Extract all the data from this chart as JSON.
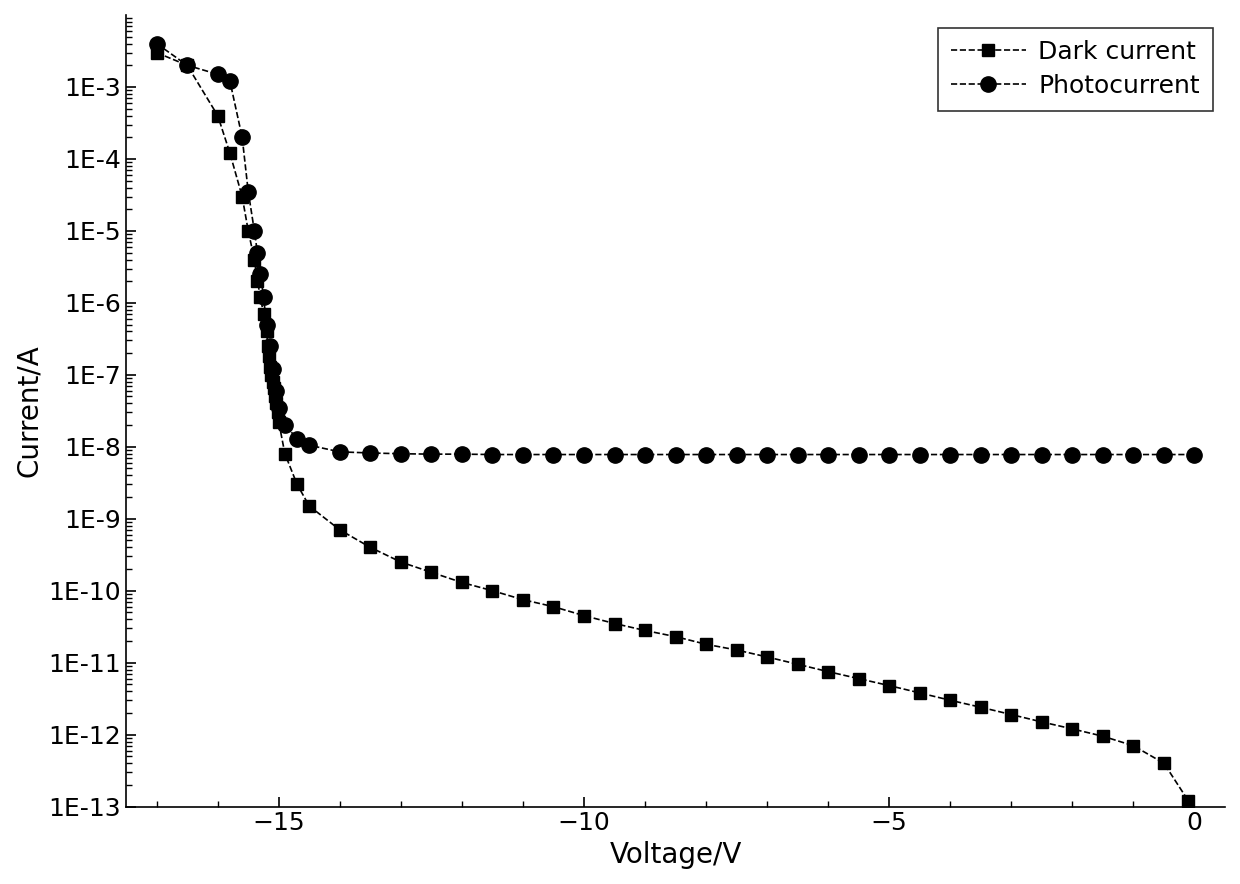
{
  "dark_current_voltage": [
    -17.0,
    -16.5,
    -16.0,
    -15.8,
    -15.6,
    -15.5,
    -15.4,
    -15.35,
    -15.3,
    -15.25,
    -15.2,
    -15.18,
    -15.16,
    -15.14,
    -15.12,
    -15.1,
    -15.08,
    -15.06,
    -15.04,
    -15.02,
    -15.0,
    -14.9,
    -14.7,
    -14.5,
    -14.0,
    -13.5,
    -13.0,
    -12.5,
    -12.0,
    -11.5,
    -11.0,
    -10.5,
    -10.0,
    -9.5,
    -9.0,
    -8.5,
    -8.0,
    -7.5,
    -7.0,
    -6.5,
    -6.0,
    -5.5,
    -5.0,
    -4.5,
    -4.0,
    -3.5,
    -3.0,
    -2.5,
    -2.0,
    -1.5,
    -1.0,
    -0.5,
    -0.1
  ],
  "dark_current_values": [
    0.003,
    0.002,
    0.0004,
    0.00012,
    3e-05,
    1e-05,
    4e-06,
    2e-06,
    1.2e-06,
    7e-07,
    4e-07,
    2.5e-07,
    1.8e-07,
    1.3e-07,
    1e-07,
    8e-08,
    6.5e-08,
    5e-08,
    4e-08,
    3e-08,
    2.2e-08,
    8e-09,
    3e-09,
    1.5e-09,
    7e-10,
    4e-10,
    2.5e-10,
    1.8e-10,
    1.3e-10,
    1e-10,
    7.5e-11,
    6e-11,
    4.5e-11,
    3.5e-11,
    2.8e-11,
    2.3e-11,
    1.8e-11,
    1.5e-11,
    1.2e-11,
    9.5e-12,
    7.5e-12,
    6e-12,
    4.8e-12,
    3.8e-12,
    3e-12,
    2.4e-12,
    1.9e-12,
    1.5e-12,
    1.2e-12,
    9.5e-13,
    7e-13,
    4e-13,
    1.2e-13
  ],
  "photocurrent_voltage": [
    -17.0,
    -16.5,
    -16.0,
    -15.8,
    -15.6,
    -15.5,
    -15.4,
    -15.35,
    -15.3,
    -15.25,
    -15.2,
    -15.15,
    -15.1,
    -15.05,
    -15.0,
    -14.9,
    -14.7,
    -14.5,
    -14.0,
    -13.5,
    -13.0,
    -12.5,
    -12.0,
    -11.5,
    -11.0,
    -10.5,
    -10.0,
    -9.5,
    -9.0,
    -8.5,
    -8.0,
    -7.5,
    -7.0,
    -6.5,
    -6.0,
    -5.5,
    -5.0,
    -4.5,
    -4.0,
    -3.5,
    -3.0,
    -2.5,
    -2.0,
    -1.5,
    -1.0,
    -0.5,
    0.0
  ],
  "photocurrent_values": [
    0.004,
    0.002,
    0.0015,
    0.0012,
    0.0002,
    3.5e-05,
    1e-05,
    5e-06,
    2.5e-06,
    1.2e-06,
    5e-07,
    2.5e-07,
    1.2e-07,
    6e-08,
    3.5e-08,
    2e-08,
    1.3e-08,
    1.05e-08,
    8.5e-09,
    8.2e-09,
    8e-09,
    7.9e-09,
    7.9e-09,
    7.8e-09,
    7.8e-09,
    7.8e-09,
    7.8e-09,
    7.8e-09,
    7.8e-09,
    7.8e-09,
    7.8e-09,
    7.8e-09,
    7.8e-09,
    7.8e-09,
    7.8e-09,
    7.8e-09,
    7.8e-09,
    7.8e-09,
    7.8e-09,
    7.8e-09,
    7.8e-09,
    7.8e-09,
    7.8e-09,
    7.8e-09,
    7.8e-09,
    7.8e-09,
    7.8e-09
  ],
  "xlabel": "Voltage/V",
  "ylabel": "Current/A",
  "xlim": [
    -17.5,
    0.5
  ],
  "ylim_log": [
    1e-13,
    0.01
  ],
  "xticks": [
    -15,
    -10,
    -5,
    0
  ],
  "ytick_vals": [
    1e-13,
    1e-12,
    1e-11,
    1e-10,
    1e-09,
    1e-08,
    1e-07,
    1e-06,
    1e-05,
    0.0001,
    0.001
  ],
  "ytick_labels": [
    "1E-13",
    "1E-12",
    "1E-11",
    "1E-10",
    "1E-9",
    "1E-8",
    "1E-7",
    "1E-6",
    "1E-5",
    "1E-4",
    "1E-3"
  ],
  "legend_dark": "Dark current",
  "legend_photo": "Photocurrent",
  "line_color": "#000000",
  "marker_square": "s",
  "marker_circle": "o",
  "markersize_dark": 8,
  "markersize_photo": 11,
  "linewidth": 1.2,
  "linestyle": "--",
  "xlabel_fontsize": 20,
  "ylabel_fontsize": 20,
  "tick_labelsize": 18,
  "legend_fontsize": 18
}
